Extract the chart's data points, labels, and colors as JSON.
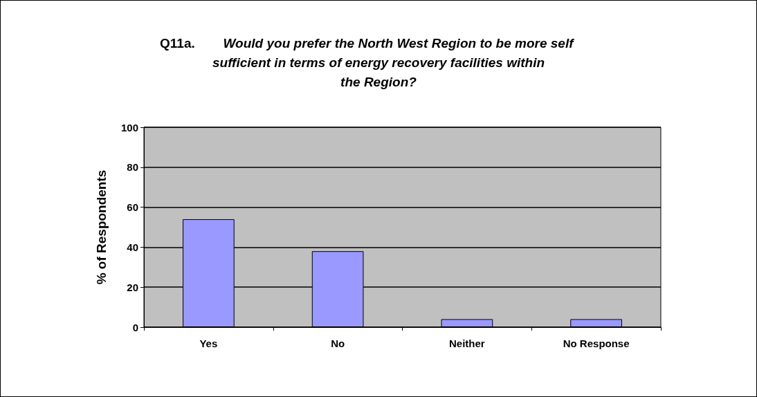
{
  "chart_data": {
    "type": "bar",
    "title": "Q11a. Would you prefer the North West Region to be more self sufficient in terms of energy recovery facilities within the Region?",
    "ylabel": "% of Respondents",
    "categories": [
      "Yes",
      "No",
      "Neither",
      "No Response"
    ],
    "values": [
      54,
      38,
      4,
      4
    ],
    "color": "#9999ff",
    "ylim": [
      0,
      100
    ],
    "yticks": [
      0,
      20,
      40,
      60,
      80,
      100
    ],
    "grid": "y",
    "legend": false
  }
}
